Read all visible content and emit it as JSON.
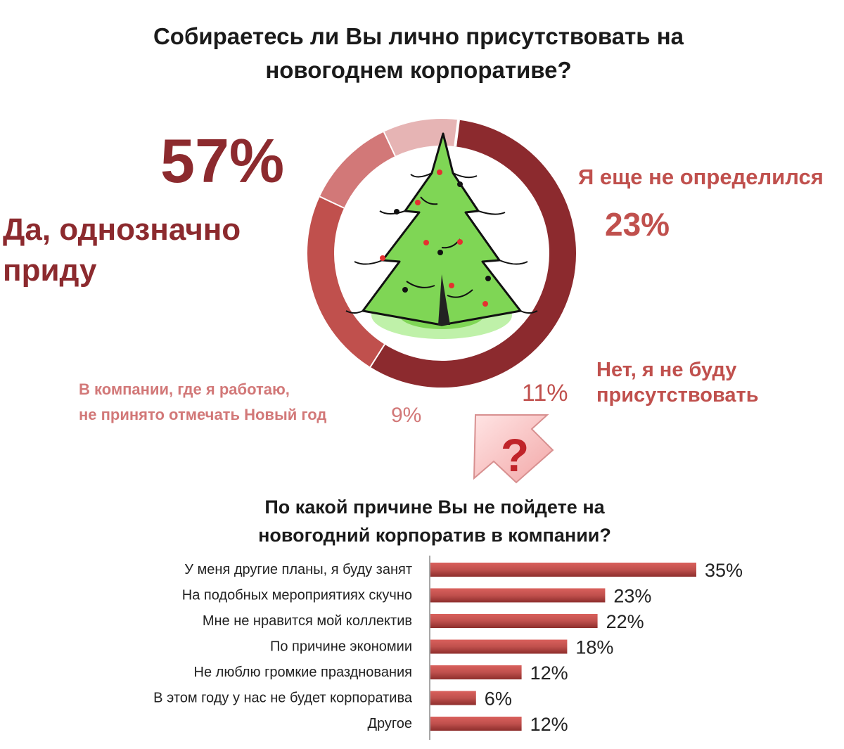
{
  "colors": {
    "yes": "#8c2a2e",
    "undecided": "#c0504d",
    "no": "#d27878",
    "not_celebrate": "#e6b4b4",
    "bar": "#c0504d",
    "tree": "#7fd655"
  },
  "icons": [
    "christmas-tree-icon",
    "question-arrow-icon"
  ],
  "headings": {
    "q1": "Собираетесь ли Вы лично присутствовать на новогоднем корпоративе?",
    "q2": "По какой причине Вы не пойдете на новогодний корпоратив в компании?"
  },
  "labels": {
    "yes_pct": "57%",
    "yes": "Да, однозначно приду",
    "undecided": "Я еще не определился",
    "undecided_pct": "23%",
    "no": "Нет, я не буду присутствовать",
    "no_pct": "11%",
    "not_celebrate": "В компании, где я работаю, не принято отмечать Новый год",
    "not_celebrate_pct": "9%",
    "question_mark": "?"
  },
  "chart_data": [
    {
      "type": "pie",
      "title": "Собираетесь ли Вы лично присутствовать на новогоднем корпоративе?",
      "categories": [
        "Да, однозначно приду",
        "Я еще не определился",
        "Нет, я не буду присутствовать",
        "В компании, где я работаю, не принято отмечать Новый год"
      ],
      "values": [
        57,
        23,
        11,
        9
      ],
      "legend": "none"
    },
    {
      "type": "bar",
      "title": "По какой причине Вы не пойдете на новогодний корпоратив в компании?",
      "categories": [
        "У меня другие планы, я буду занят",
        "На подобных мероприятиях скучно",
        "Мне не нравится мой коллектив",
        "По причине экономии",
        "Не люблю громкие празднования",
        "В этом году у нас не будет корпоратива",
        "Другое"
      ],
      "values": [
        35,
        23,
        22,
        18,
        12,
        6,
        12
      ],
      "value_labels": [
        "35%",
        "23%",
        "22%",
        "18%",
        "12%",
        "6%",
        "12%"
      ],
      "orientation": "horizontal",
      "grid": false,
      "legend": "none"
    }
  ]
}
